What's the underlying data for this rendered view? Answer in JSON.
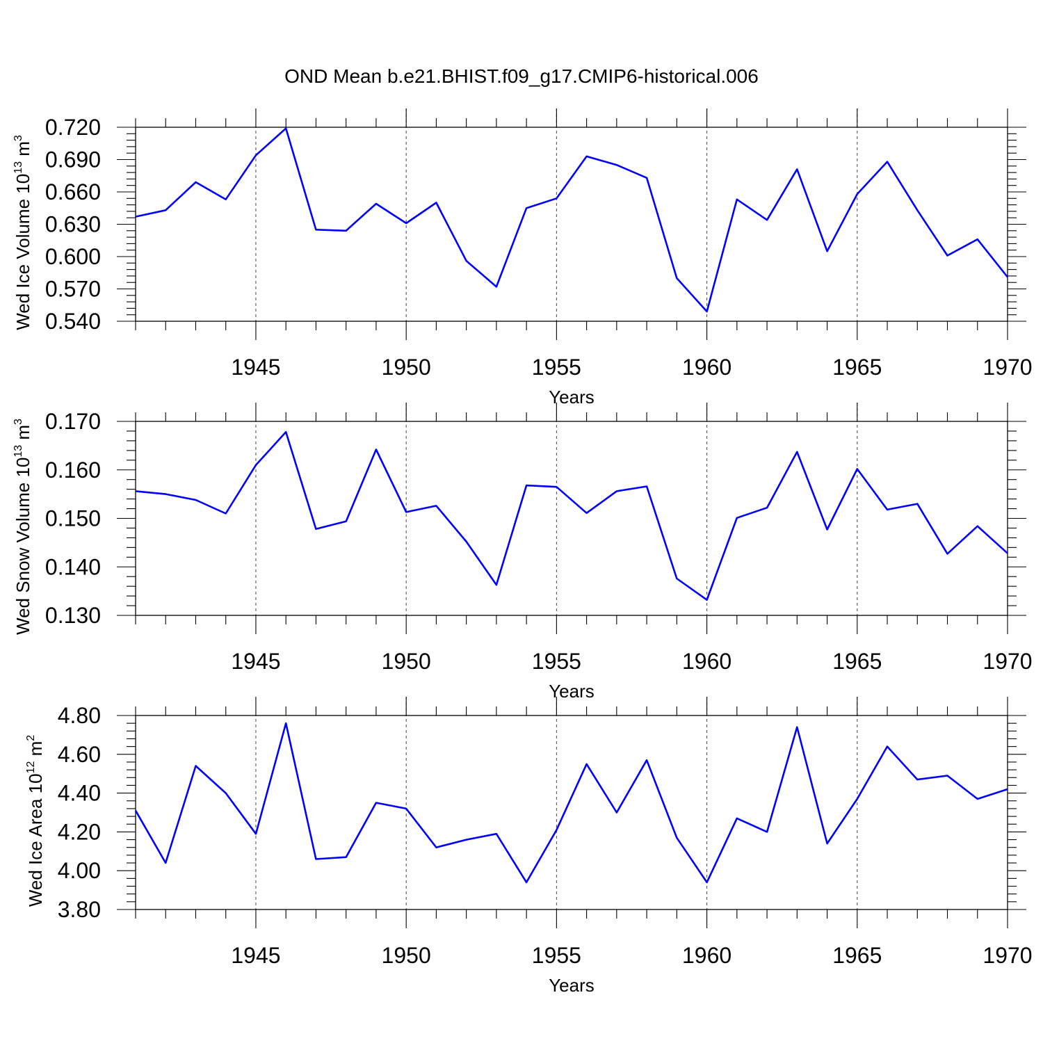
{
  "title": "OND Mean b.e21.BHIST.f09_g17.CMIP6-historical.006",
  "line_color": "#0000ff",
  "chart_data": [
    {
      "type": "line",
      "ylabel": {
        "text": "Wed Ice Volume 10",
        "exp1": "13",
        "mid": " m",
        "exp2": "3"
      },
      "xlabel": "Years",
      "xlim": [
        1941,
        1970
      ],
      "ylim": [
        0.54,
        0.72
      ],
      "ymajor": [
        0.54,
        0.57,
        0.6,
        0.63,
        0.66,
        0.69,
        0.72
      ],
      "ytick_labels": [
        "0.540",
        "0.570",
        "0.600",
        "0.630",
        "0.660",
        "0.690",
        "0.720"
      ],
      "yminor_step": 0.006,
      "xtick_values": [
        1945,
        1950,
        1955,
        1960,
        1965,
        1970
      ],
      "xtick_labels": [
        "1945",
        "1950",
        "1955",
        "1960",
        "1965",
        "1970"
      ],
      "x": [
        1941,
        1942,
        1943,
        1944,
        1945,
        1946,
        1947,
        1948,
        1949,
        1950,
        1951,
        1952,
        1953,
        1954,
        1955,
        1956,
        1957,
        1958,
        1959,
        1960,
        1961,
        1962,
        1963,
        1964,
        1965,
        1966,
        1967,
        1968,
        1969,
        1970
      ],
      "y": [
        0.637,
        0.643,
        0.669,
        0.653,
        0.694,
        0.719,
        0.625,
        0.624,
        0.649,
        0.631,
        0.65,
        0.596,
        0.572,
        0.645,
        0.654,
        0.693,
        0.685,
        0.673,
        0.58,
        0.549,
        0.653,
        0.634,
        0.681,
        0.605,
        0.658,
        0.688,
        0.643,
        0.601,
        0.616,
        0.581
      ]
    },
    {
      "type": "line",
      "ylabel": {
        "text": "Wed Snow Volume 10",
        "exp1": "13",
        "mid": " m",
        "exp2": "3"
      },
      "xlabel": "Years",
      "xlim": [
        1941,
        1970
      ],
      "ylim": [
        0.13,
        0.17
      ],
      "ymajor": [
        0.13,
        0.14,
        0.15,
        0.16,
        0.17
      ],
      "ytick_labels": [
        "0.130",
        "0.140",
        "0.150",
        "0.160",
        "0.170"
      ],
      "yminor_step": 0.002,
      "xtick_values": [
        1945,
        1950,
        1955,
        1960,
        1965,
        1970
      ],
      "xtick_labels": [
        "1945",
        "1950",
        "1955",
        "1960",
        "1965",
        "1970"
      ],
      "x": [
        1941,
        1942,
        1943,
        1944,
        1945,
        1946,
        1947,
        1948,
        1949,
        1950,
        1951,
        1952,
        1953,
        1954,
        1955,
        1956,
        1957,
        1958,
        1959,
        1960,
        1961,
        1962,
        1963,
        1964,
        1965,
        1966,
        1967,
        1968,
        1969,
        1970
      ],
      "y": [
        0.1556,
        0.155,
        0.1538,
        0.151,
        0.161,
        0.1678,
        0.1478,
        0.1494,
        0.1642,
        0.1513,
        0.1526,
        0.1452,
        0.1363,
        0.1568,
        0.1565,
        0.1511,
        0.1556,
        0.1566,
        0.1376,
        0.1332,
        0.1501,
        0.1522,
        0.1637,
        0.1477,
        0.1602,
        0.1518,
        0.153,
        0.1427,
        0.1484,
        0.1428
      ]
    },
    {
      "type": "line",
      "ylabel": {
        "text": "Wed Ice Area 10",
        "exp1": "12",
        "mid": " m",
        "exp2": "2"
      },
      "xlabel": "Years",
      "xlim": [
        1941,
        1970
      ],
      "ylim": [
        3.8,
        4.8
      ],
      "ymajor": [
        3.8,
        4.0,
        4.2,
        4.4,
        4.6,
        4.8
      ],
      "ytick_labels": [
        "3.80",
        "4.00",
        "4.20",
        "4.40",
        "4.60",
        "4.80"
      ],
      "yminor_step": 0.04,
      "xtick_values": [
        1945,
        1950,
        1955,
        1960,
        1965,
        1970
      ],
      "xtick_labels": [
        "1945",
        "1950",
        "1955",
        "1960",
        "1965",
        "1970"
      ],
      "x": [
        1941,
        1942,
        1943,
        1944,
        1945,
        1946,
        1947,
        1948,
        1949,
        1950,
        1951,
        1952,
        1953,
        1954,
        1955,
        1956,
        1957,
        1958,
        1959,
        1960,
        1961,
        1962,
        1963,
        1964,
        1965,
        1966,
        1967,
        1968,
        1969,
        1970
      ],
      "y": [
        4.31,
        4.04,
        4.54,
        4.4,
        4.19,
        4.76,
        4.06,
        4.07,
        4.35,
        4.32,
        4.12,
        4.16,
        4.19,
        3.94,
        4.21,
        4.55,
        4.3,
        4.57,
        4.17,
        3.94,
        4.27,
        4.2,
        4.74,
        4.14,
        4.37,
        4.64,
        4.47,
        4.49,
        4.37,
        4.42
      ]
    }
  ]
}
